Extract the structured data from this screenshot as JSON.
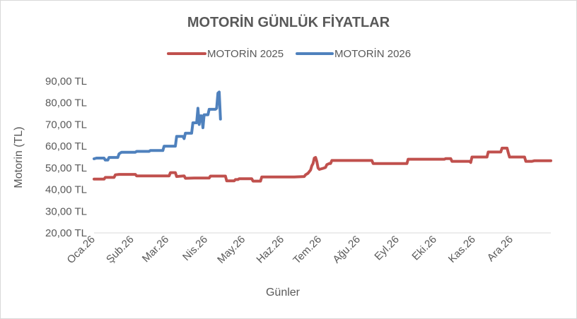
{
  "chart_data": {
    "type": "line",
    "title": "MOTORİN GÜNLÜK FİYATLAR",
    "xlabel": "Günler",
    "ylabel": "Motorin (TL)",
    "ylim": [
      20,
      90
    ],
    "ytick_values": [
      20,
      30,
      40,
      50,
      60,
      70,
      80,
      90
    ],
    "ytick_labels": [
      "20,00 TL",
      "30,00 TL",
      "40,00 TL",
      "50,00 TL",
      "60,00 TL",
      "70,00 TL",
      "80,00 TL",
      "90,00 TL"
    ],
    "xlim": [
      0,
      365
    ],
    "xtick_values": [
      0,
      31,
      59,
      90,
      120,
      151,
      181,
      212,
      243,
      273,
      304,
      334
    ],
    "xtick_labels": [
      "Oca.26",
      "Şub.26",
      "Mar.26",
      "Nis.26",
      "May.26",
      "Haz.26",
      "Tem.26",
      "Ağu.26",
      "Eyl.26",
      "Eki.26",
      "Kas.26",
      "Ara.26"
    ],
    "grid": false,
    "legend_position": "top",
    "series": [
      {
        "name": "MOTORİN 2025",
        "color": "#c0504d",
        "points": [
          [
            0,
            44.8
          ],
          [
            8,
            44.8
          ],
          [
            9,
            45.6
          ],
          [
            16,
            45.6
          ],
          [
            17,
            46.8
          ],
          [
            20,
            47.0
          ],
          [
            33,
            47.0
          ],
          [
            34,
            46.3
          ],
          [
            60,
            46.3
          ],
          [
            61,
            47.8
          ],
          [
            65,
            47.8
          ],
          [
            66,
            46.0
          ],
          [
            72,
            46.3
          ],
          [
            73,
            45.2
          ],
          [
            80,
            45.3
          ],
          [
            92,
            45.3
          ],
          [
            93,
            46.2
          ],
          [
            105,
            46.2
          ],
          [
            106,
            44.0
          ],
          [
            112,
            44.0
          ],
          [
            113,
            44.6
          ],
          [
            115,
            44.6
          ],
          [
            116,
            45.0
          ],
          [
            126,
            45.0
          ],
          [
            127,
            43.9
          ],
          [
            133,
            43.9
          ],
          [
            134,
            45.8
          ],
          [
            148,
            45.8
          ],
          [
            160,
            45.8
          ],
          [
            168,
            46.0
          ],
          [
            169,
            46.8
          ],
          [
            171,
            47.5
          ],
          [
            173,
            49.0
          ],
          [
            174,
            51.0
          ],
          [
            175,
            52.0
          ],
          [
            176,
            54.5
          ],
          [
            177,
            54.8
          ],
          [
            178,
            53.0
          ],
          [
            179,
            50.0
          ],
          [
            180,
            49.3
          ],
          [
            183,
            49.8
          ],
          [
            185,
            50.2
          ],
          [
            186,
            51.5
          ],
          [
            188,
            52.0
          ],
          [
            189,
            52.0
          ],
          [
            190,
            53.4
          ],
          [
            210,
            53.4
          ],
          [
            222,
            53.4
          ],
          [
            223,
            52.0
          ],
          [
            235,
            52.0
          ],
          [
            250,
            52.0
          ],
          [
            251,
            54.0
          ],
          [
            258,
            54.0
          ],
          [
            270,
            54.0
          ],
          [
            280,
            54.0
          ],
          [
            281,
            54.3
          ],
          [
            285,
            54.3
          ],
          [
            286,
            53.0
          ],
          [
            300,
            53.0
          ],
          [
            301,
            52.5
          ],
          [
            302,
            55.0
          ],
          [
            314,
            55.0
          ],
          [
            315,
            57.3
          ],
          [
            325,
            57.3
          ],
          [
            326,
            59.1
          ],
          [
            330,
            59.1
          ],
          [
            331,
            57.0
          ],
          [
            332,
            55.0
          ],
          [
            344,
            55.0
          ],
          [
            345,
            53.0
          ],
          [
            350,
            53.0
          ],
          [
            352,
            53.3
          ],
          [
            365,
            53.3
          ]
        ]
      },
      {
        "name": "MOTORİN 2026",
        "color": "#4f81bd",
        "points": [
          [
            0,
            54.2
          ],
          [
            2,
            54.5
          ],
          [
            8,
            54.5
          ],
          [
            9,
            53.6
          ],
          [
            11,
            53.6
          ],
          [
            12,
            54.8
          ],
          [
            19,
            54.8
          ],
          [
            20,
            56.5
          ],
          [
            22,
            57.2
          ],
          [
            33,
            57.2
          ],
          [
            34,
            57.6
          ],
          [
            44,
            57.6
          ],
          [
            45,
            58.0
          ],
          [
            55,
            58.0
          ],
          [
            56,
            60.0
          ],
          [
            65,
            60.0
          ],
          [
            66,
            64.5
          ],
          [
            71,
            64.5
          ],
          [
            72,
            63.5
          ],
          [
            73,
            66.0
          ],
          [
            78,
            66.0
          ],
          [
            79,
            70.8
          ],
          [
            82,
            70.8
          ],
          [
            83,
            77.5
          ],
          [
            84,
            70.0
          ],
          [
            85,
            74.0
          ],
          [
            86,
            74.0
          ],
          [
            87,
            68.5
          ],
          [
            88,
            74.5
          ],
          [
            91,
            74.5
          ],
          [
            92,
            77.0
          ],
          [
            97,
            77.0
          ],
          [
            98,
            77.5
          ],
          [
            99,
            84.5
          ],
          [
            100,
            85.0
          ],
          [
            101,
            72.5
          ]
        ]
      }
    ]
  }
}
